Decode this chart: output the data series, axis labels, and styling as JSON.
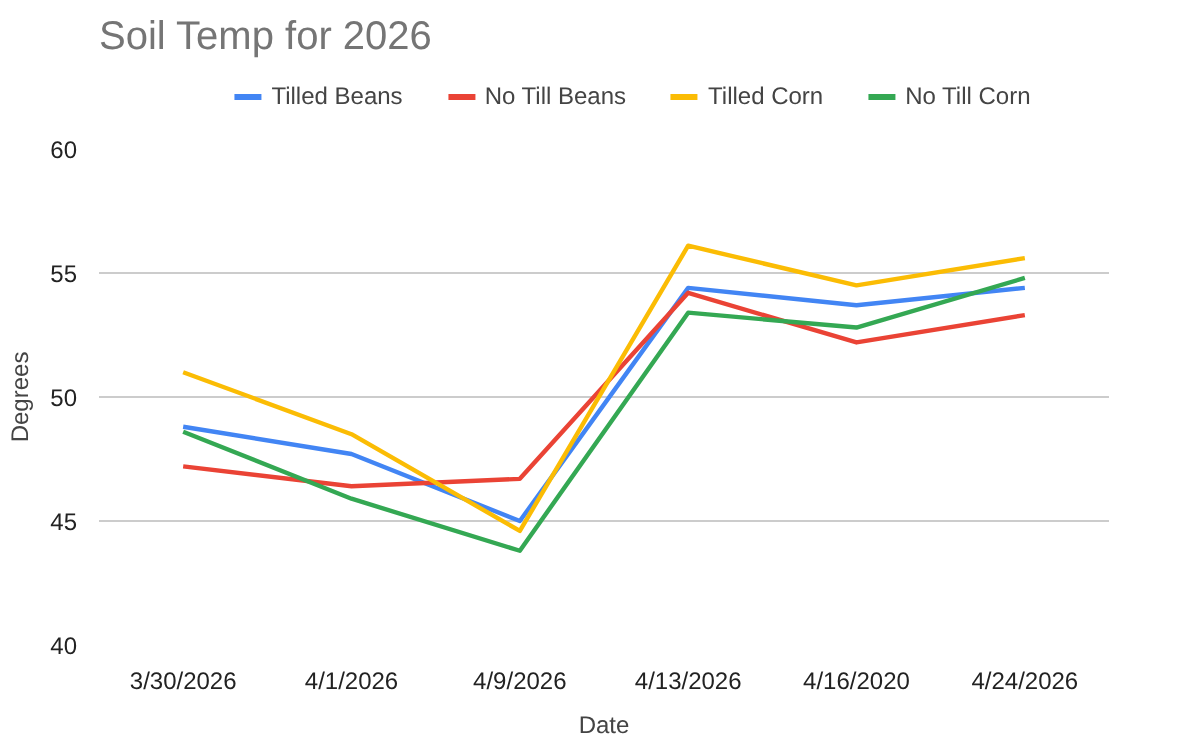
{
  "chart_data": {
    "type": "line",
    "title": "Soil Temp for 2026",
    "xlabel": "Date",
    "ylabel": "Degrees",
    "categories": [
      "3/30/2026",
      "4/1/2026",
      "4/9/2026",
      "4/13/2026",
      "4/16/2020",
      "4/24/2026"
    ],
    "series": [
      {
        "name": "Tilled Beans",
        "color": "#4285f4",
        "values": [
          48.8,
          47.7,
          45.0,
          54.4,
          53.7,
          54.4
        ]
      },
      {
        "name": "No Till Beans",
        "color": "#ea4335",
        "values": [
          47.2,
          46.4,
          46.7,
          54.2,
          52.2,
          53.3
        ]
      },
      {
        "name": "Tilled Corn",
        "color": "#fbbc04",
        "values": [
          51.0,
          48.5,
          44.6,
          56.1,
          54.5,
          55.6
        ]
      },
      {
        "name": "No Till Corn",
        "color": "#34a853",
        "values": [
          48.6,
          45.9,
          43.8,
          53.4,
          52.8,
          54.8
        ]
      }
    ],
    "ylim": [
      40,
      60
    ],
    "yticks": [
      40,
      45,
      50,
      55,
      60
    ],
    "grid": "y",
    "legend": "top",
    "marker": "none",
    "line_style": "solid"
  }
}
